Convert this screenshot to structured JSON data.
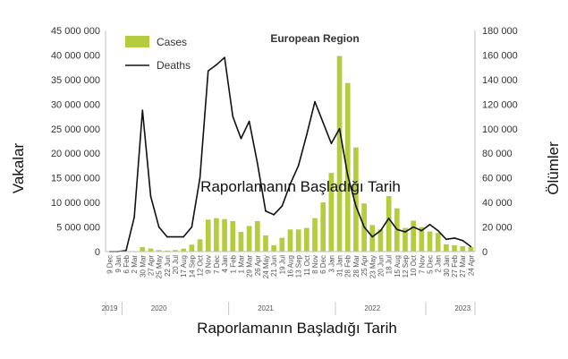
{
  "chart_data": {
    "type": "bar",
    "title": "European Region",
    "overlay_text": "Raporlamanın Başladığı Tarih",
    "xlabel": "Raporlamanın Başladığı Tarih",
    "ylabel_left": "Vakalar",
    "ylabel_right": "Ölümler",
    "ylim_left": [
      0,
      45000000
    ],
    "ylim_right": [
      0,
      180000
    ],
    "yticks_left": [
      "0",
      "5 000 000",
      "10 000 000",
      "15 000 000",
      "20 000 000",
      "25 000 000",
      "30 000 000",
      "35 000 000",
      "40 000 000",
      "45 000 000"
    ],
    "yticks_right": [
      "0",
      "20 000",
      "40 000",
      "60 000",
      "80 000",
      "100 000",
      "120 000",
      "140 000",
      "160 000",
      "180 000"
    ],
    "x_tick_labels": [
      "9 Dec",
      "9 Jan",
      "6 Feb",
      "2 Mar",
      "30 Mar",
      "27 Apr",
      "25 May",
      "22 Jun",
      "20 Jul",
      "17 Aug",
      "14 Sep",
      "12 Oct",
      "9 Nov",
      "7 Dec",
      "4 Jan",
      "1 Feb",
      "1 Mar",
      "29 Mar",
      "26 Apr",
      "24 May",
      "21 Jun",
      "19 Jul",
      "16 Aug",
      "13 Sep",
      "11 Oct",
      "8 Nov",
      "6 Dec",
      "3 Jan",
      "31 Jan",
      "28 Feb",
      "28 Mar",
      "25 Apr",
      "23 May",
      "20 Jun",
      "18 Jul",
      "15 Aug",
      "12 Sep",
      "10 Oct",
      "7 Nov",
      "5 Dec",
      "2 Jan",
      "30 Jan",
      "27 Feb",
      "27 Mar",
      "24 Apr"
    ],
    "years": [
      {
        "label": "2019",
        "index": 0
      },
      {
        "label": "2020",
        "index": 6
      },
      {
        "label": "2021",
        "index": 19
      },
      {
        "label": "2022",
        "index": 32
      },
      {
        "label": "2023",
        "index": 43
      }
    ],
    "series": [
      {
        "name": "Cases",
        "axis": "left",
        "type": "bar",
        "color": "#b5cc3f",
        "values": [
          0,
          0,
          0,
          100000,
          900000,
          600000,
          300000,
          200000,
          300000,
          600000,
          1400000,
          2500000,
          6500000,
          6800000,
          6600000,
          6200000,
          4000000,
          5200000,
          6200000,
          3300000,
          1300000,
          2800000,
          4500000,
          4500000,
          4800000,
          6800000,
          10000000,
          16000000,
          39800000,
          34300000,
          21200000,
          9800000,
          5400000,
          4500000,
          11300000,
          8800000,
          4800000,
          6300000,
          5000000,
          4100000,
          3800000,
          1500000,
          1300000,
          1100000,
          900000
        ]
      },
      {
        "name": "Deaths",
        "axis": "right",
        "type": "line",
        "color": "#111111",
        "values": [
          0,
          0,
          800,
          28000,
          115000,
          45000,
          20000,
          12000,
          12000,
          12000,
          20000,
          60000,
          147000,
          152000,
          158000,
          110000,
          92000,
          106000,
          72000,
          33000,
          30000,
          37000,
          55000,
          70000,
          95000,
          122000,
          105000,
          88000,
          100000,
          62000,
          37000,
          20000,
          12000,
          17000,
          27000,
          18000,
          16000,
          20000,
          17000,
          22000,
          17000,
          10000,
          11000,
          9000,
          4000
        ]
      }
    ],
    "legend_position": "top-left",
    "grid": false
  }
}
